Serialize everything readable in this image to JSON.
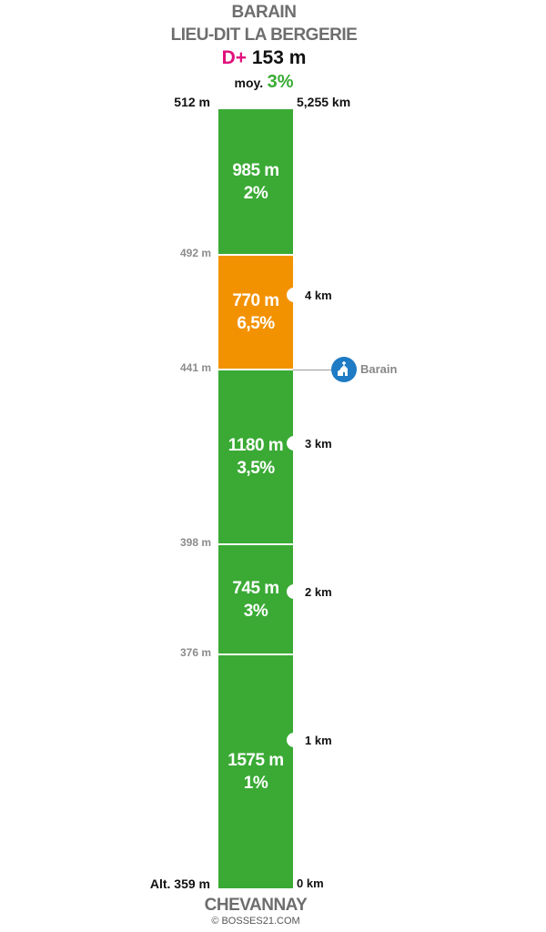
{
  "header": {
    "summit_name": "BARAIN",
    "summit_subname": "LIEU-DIT LA BERGERIE",
    "elevation_gain_label": "D+",
    "elevation_gain": "153 m",
    "avg_label": "moy.",
    "avg_grade": "3%"
  },
  "top": {
    "altitude": "512 m",
    "distance": "5,255 km"
  },
  "bottom": {
    "altitude": "Alt. 359 m",
    "distance": "0 km",
    "start_name": "CHEVANNAY"
  },
  "credit": "© BOSSES21.COM",
  "poi": {
    "label": "Barain",
    "icon": "church-icon"
  },
  "colors": {
    "green": "#3aaa35",
    "orange": "#f39200",
    "magenta": "#e0107c",
    "poi_blue": "#1e7bc4"
  },
  "chart_data": {
    "type": "bar",
    "segments": [
      {
        "length": "1575 m",
        "grade": "1%",
        "color": "#3aaa35"
      },
      {
        "length": "745 m",
        "grade": "3%",
        "color": "#3aaa35"
      },
      {
        "length": "1180 m",
        "grade": "3,5%",
        "color": "#3aaa35"
      },
      {
        "length": "770 m",
        "grade": "6,5%",
        "color": "#f39200"
      },
      {
        "length": "985 m",
        "grade": "2%",
        "color": "#3aaa35"
      }
    ],
    "segment_lengths_m": [
      1575,
      745,
      1180,
      770,
      985
    ],
    "boundary_altitudes": [
      "376 m",
      "398 m",
      "441 m",
      "492 m"
    ],
    "km_markers": [
      "1 km",
      "2 km",
      "3 km",
      "4 km"
    ],
    "km_values": [
      1,
      2,
      3,
      4
    ],
    "total_distance_km": 5.255,
    "poi_distance_km": 3.5
  }
}
